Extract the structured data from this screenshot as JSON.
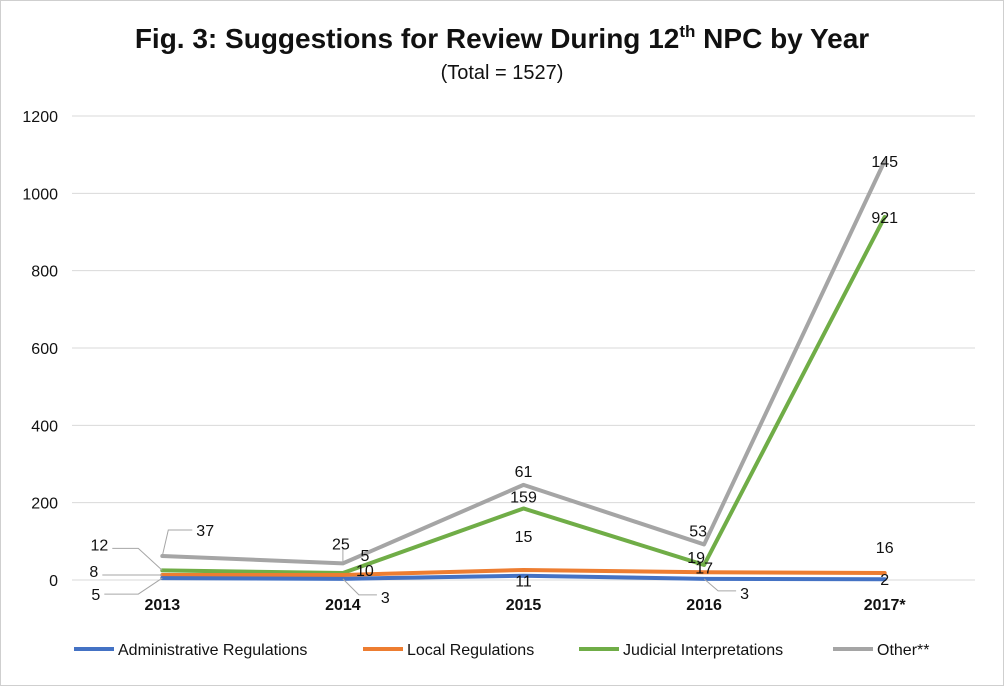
{
  "chart_data": {
    "type": "line",
    "title_main": "Fig. 3: Suggestions for Review During 12",
    "title_sup": "th",
    "title_end": " NPC by Year",
    "subtitle": "(Total = 1527)",
    "categories": [
      "2013",
      "2014",
      "2015",
      "2016",
      "2017*"
    ],
    "ylim": [
      0,
      1200
    ],
    "yticks": [
      "0",
      "200",
      "400",
      "600",
      "800",
      "1000",
      "1200"
    ],
    "grid": true,
    "stacked": true,
    "legend_position": "bottom",
    "series": [
      {
        "name": "Administrative Regulations",
        "color": "#4472C4",
        "values": [
          5,
          3,
          11,
          3,
          2
        ],
        "labels": [
          "5",
          "3",
          "11",
          "3",
          "2"
        ]
      },
      {
        "name": "Local Regulations",
        "color": "#ED7D31",
        "values": [
          8,
          10,
          15,
          17,
          16
        ],
        "labels": [
          "8",
          "10",
          "15",
          "17",
          "16"
        ]
      },
      {
        "name": "Judicial Interpretations",
        "color": "#70AD47",
        "values": [
          12,
          5,
          159,
          19,
          921
        ],
        "labels": [
          "12",
          "5",
          "159",
          "19",
          "921"
        ]
      },
      {
        "name": "Other**",
        "color": "#A5A5A5",
        "values": [
          37,
          25,
          61,
          53,
          145
        ],
        "labels": [
          "37",
          "25",
          "61",
          "53",
          "145"
        ]
      }
    ]
  }
}
